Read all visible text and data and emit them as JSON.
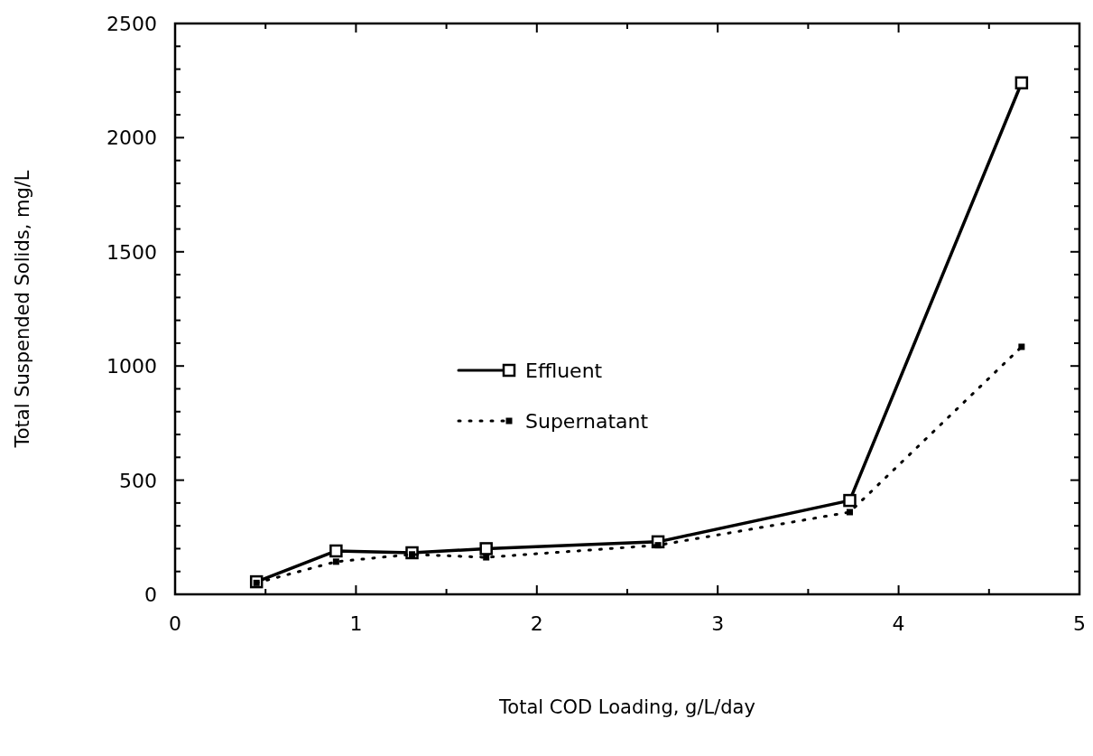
{
  "chart_data": {
    "type": "line",
    "xlabel": "Total COD Loading, g/L/day",
    "ylabel": "Total Suspended Solids, mg/L",
    "xlim": [
      0,
      5
    ],
    "ylim": [
      0,
      2500
    ],
    "xticks": [
      0,
      {
        "value": 0.5,
        "label": null
      },
      1,
      {
        "value": 1.5,
        "label": null
      },
      2,
      {
        "value": 2.5,
        "label": null
      },
      3,
      {
        "value": 3.5,
        "label": null
      },
      4,
      {
        "value": 4.5,
        "label": null
      },
      5
    ],
    "yticks": [
      0,
      {
        "value": 100,
        "label": null
      },
      {
        "value": 200,
        "label": null
      },
      {
        "value": 300,
        "label": null
      },
      {
        "value": 400,
        "label": null
      },
      500,
      {
        "value": 600,
        "label": null
      },
      {
        "value": 700,
        "label": null
      },
      {
        "value": 800,
        "label": null
      },
      {
        "value": 900,
        "label": null
      },
      1000,
      {
        "value": 1100,
        "label": null
      },
      {
        "value": 1200,
        "label": null
      },
      {
        "value": 1300,
        "label": null
      },
      {
        "value": 1400,
        "label": null
      },
      1500,
      {
        "value": 1600,
        "label": null
      },
      {
        "value": 1700,
        "label": null
      },
      {
        "value": 1800,
        "label": null
      },
      {
        "value": 1900,
        "label": null
      },
      2000,
      {
        "value": 2100,
        "label": null
      },
      {
        "value": 2200,
        "label": null
      },
      {
        "value": 2300,
        "label": null
      },
      {
        "value": 2400,
        "label": null
      },
      2500
    ],
    "x": [
      0.45,
      0.89,
      1.31,
      1.72,
      2.67,
      3.73,
      4.68
    ],
    "legend": "center",
    "grid": false,
    "series": [
      {
        "name": "Effluent",
        "color": "#000000",
        "marker": "square",
        "line_style": "solid",
        "values": [
          55,
          190,
          182,
          200,
          230,
          411,
          2240
        ]
      },
      {
        "name": "Supernatant",
        "color": "#000000",
        "marker": "square",
        "line_style": "dotted",
        "values": [
          50,
          143,
          175,
          162,
          215,
          360,
          1084
        ]
      }
    ]
  }
}
